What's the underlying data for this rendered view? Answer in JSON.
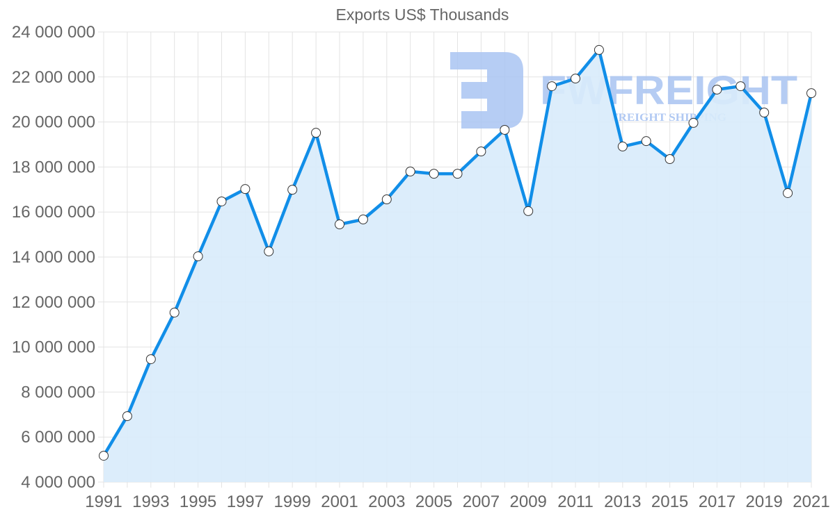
{
  "chart_data": {
    "type": "line",
    "title": "Exports US$ Thousands",
    "xlabel": "",
    "ylabel": "",
    "x": [
      1991,
      1992,
      1993,
      1994,
      1995,
      1996,
      1997,
      1998,
      1999,
      2000,
      2001,
      2002,
      2003,
      2004,
      2005,
      2006,
      2007,
      2008,
      2009,
      2010,
      2011,
      2012,
      2013,
      2014,
      2015,
      2016,
      2017,
      2018,
      2019,
      2020,
      2021
    ],
    "series": [
      {
        "name": "Exports US$ Thousands",
        "values": [
          5170000,
          6930000,
          9460000,
          11530000,
          14030000,
          16470000,
          17020000,
          14250000,
          16990000,
          19520000,
          15450000,
          15670000,
          16560000,
          17800000,
          17700000,
          17700000,
          18690000,
          19650000,
          16040000,
          21590000,
          21930000,
          23200000,
          18910000,
          19150000,
          18350000,
          19960000,
          21440000,
          21590000,
          20420000,
          16840000,
          21280000
        ],
        "color": "#118ee8",
        "fill": "#d8ebfb",
        "area": true
      }
    ],
    "ylim": [
      4000000,
      24000000
    ],
    "yticks": [
      "4 000 000",
      "6 000 000",
      "8 000 000",
      "10 000 000",
      "12 000 000",
      "14 000 000",
      "16 000 000",
      "18 000 000",
      "20 000 000",
      "22 000 000",
      "24 000 000"
    ],
    "ytick_values": [
      4000000,
      6000000,
      8000000,
      10000000,
      12000000,
      14000000,
      16000000,
      18000000,
      20000000,
      22000000,
      24000000
    ],
    "xticks": [
      "1991",
      "1993",
      "1995",
      "1997",
      "1999",
      "2001",
      "2003",
      "2005",
      "2007",
      "2009",
      "2011",
      "2013",
      "2015",
      "2017",
      "2019",
      "2021"
    ],
    "grid": true,
    "legend": "none"
  },
  "watermark": {
    "brand": "FWFREIGHT",
    "tagline": "FREIGHT SHIPPING",
    "color": "#a9c4f2"
  }
}
